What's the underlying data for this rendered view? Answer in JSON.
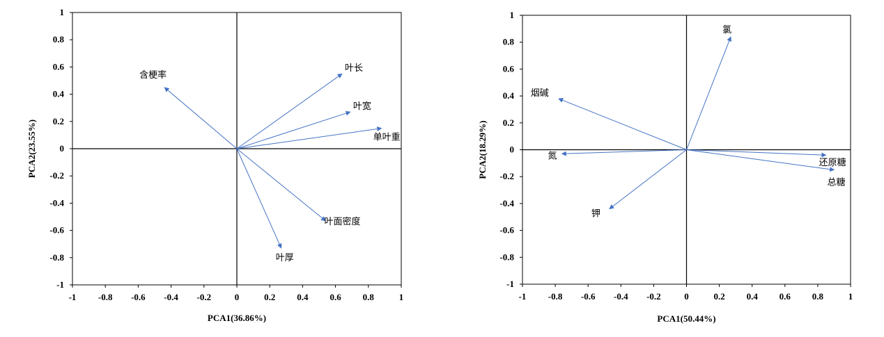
{
  "chart_data": [
    {
      "type": "biplot",
      "xlabel": "PCA1(36.86%)",
      "ylabel": "PCA2(23.55%)",
      "xlim": [
        -1,
        1
      ],
      "ylim": [
        -1,
        1
      ],
      "xticks": [
        "-1",
        "-0.8",
        "-0.6",
        "-0.4",
        "-0.2",
        "0",
        "0.2",
        "0.4",
        "0.6",
        "0.8",
        "1"
      ],
      "yticks": [
        "1",
        "0.8",
        "0.6",
        "0.4",
        "0.2",
        "0",
        "-0.2",
        "-0.4",
        "-0.6",
        "-0.8",
        "-1"
      ],
      "arrow_color": "#4472C4",
      "vectors": [
        {
          "label": "叶长",
          "x": 0.64,
          "y": 0.55
        },
        {
          "label": "叶宽",
          "x": 0.69,
          "y": 0.27
        },
        {
          "label": "单叶重",
          "x": 0.88,
          "y": 0.15
        },
        {
          "label": "含梗率",
          "x": -0.44,
          "y": 0.45
        },
        {
          "label": "叶面密度",
          "x": 0.54,
          "y": -0.53
        },
        {
          "label": "叶厚",
          "x": 0.27,
          "y": -0.73
        }
      ]
    },
    {
      "type": "biplot",
      "xlabel": "PCA1(50.44%)",
      "ylabel": "PCA2(18.29%)",
      "xlim": [
        -1,
        1
      ],
      "ylim": [
        -1,
        1
      ],
      "xticks": [
        "-1",
        "-0.8",
        "-0.6",
        "-0.4",
        "-0.2",
        "0",
        "0.2",
        "0.4",
        "0.6",
        "0.8",
        "1"
      ],
      "yticks": [
        "1",
        "0.8",
        "0.6",
        "0.4",
        "0.2",
        "0",
        "-0.2",
        "-0.4",
        "-0.6",
        "-0.8",
        "-1"
      ],
      "arrow_color": "#4472C4",
      "vectors": [
        {
          "label": "氯",
          "x": 0.27,
          "y": 0.84
        },
        {
          "label": "烟碱",
          "x": -0.78,
          "y": 0.38
        },
        {
          "label": "氮",
          "x": -0.76,
          "y": -0.03
        },
        {
          "label": "还原糖",
          "x": 0.85,
          "y": -0.04
        },
        {
          "label": "总糖",
          "x": 0.9,
          "y": -0.15
        },
        {
          "label": "钾",
          "x": -0.47,
          "y": -0.44
        }
      ]
    }
  ]
}
